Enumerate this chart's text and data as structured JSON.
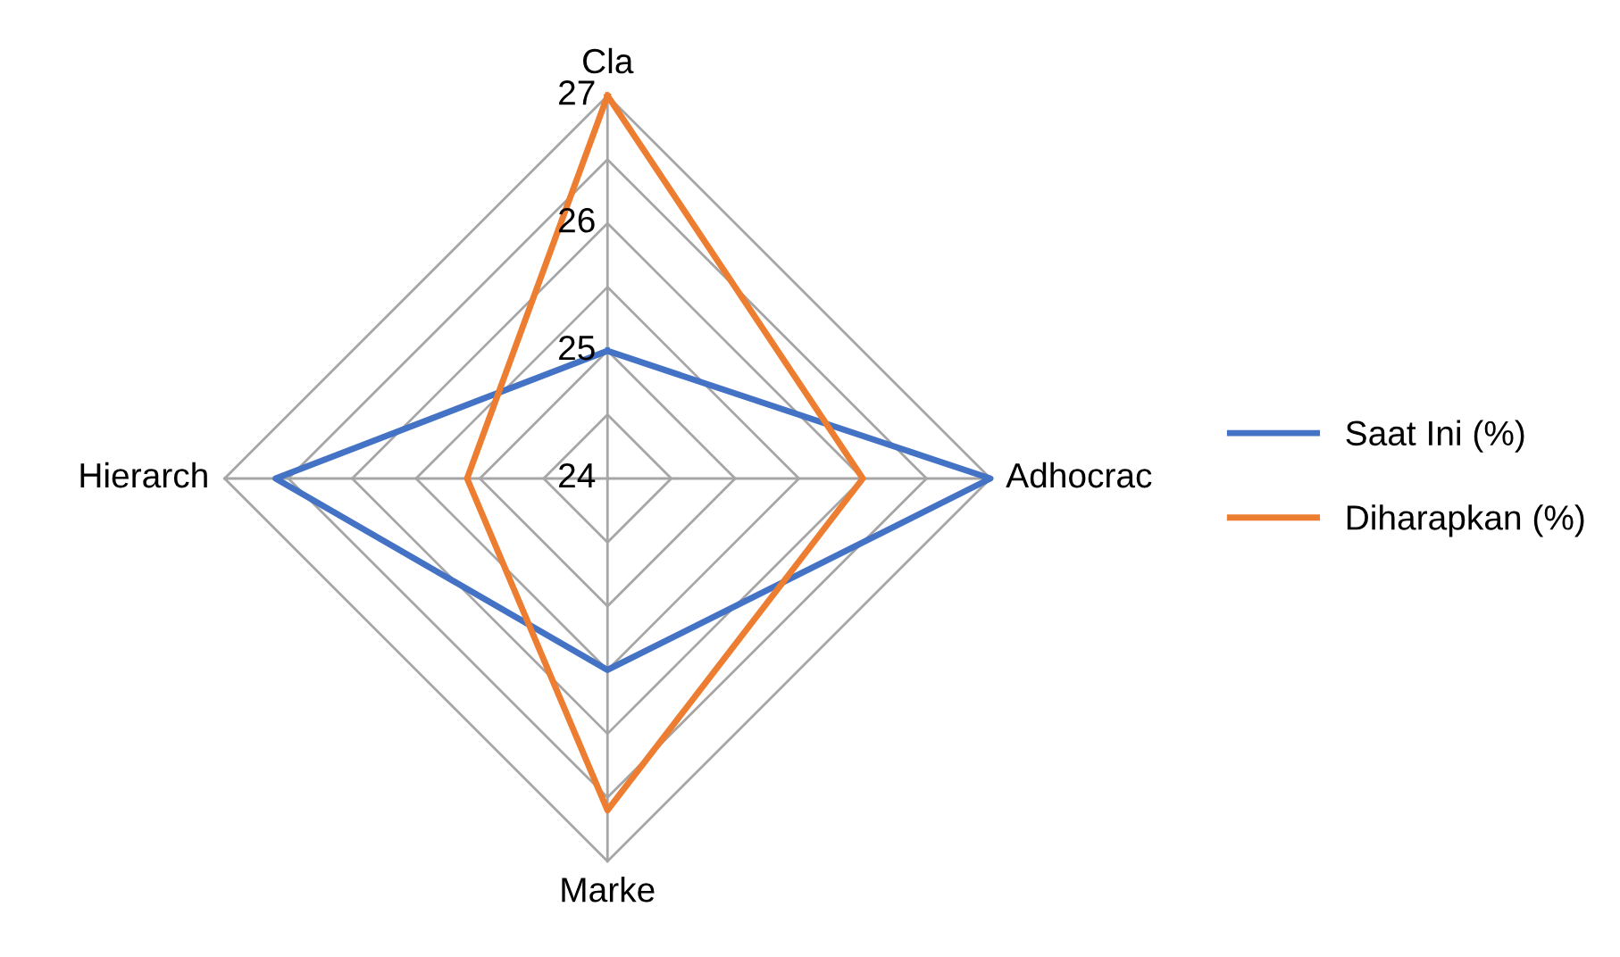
{
  "chart_data": {
    "type": "radar",
    "categories": [
      "Cla",
      "Adhocrac",
      "Marke",
      "Hierarch"
    ],
    "series": [
      {
        "name": "Saat Ini (%)",
        "color": "#4472c4",
        "values": [
          25,
          27,
          25.5,
          26.6
        ]
      },
      {
        "name": "Diharapkan (%)",
        "color": "#ed7d31",
        "values": [
          27,
          26,
          26.6,
          25.1
        ]
      }
    ],
    "ylim": [
      24,
      27
    ],
    "yticks": [
      24,
      25,
      26,
      27
    ],
    "grid": true,
    "legend": "right",
    "marker": "none",
    "line_style": "solid"
  }
}
